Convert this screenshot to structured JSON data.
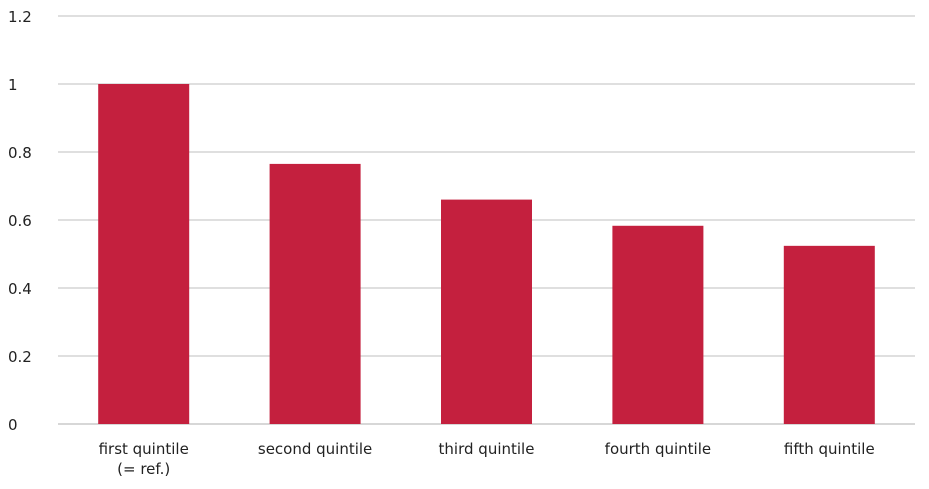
{
  "chart_data": {
    "type": "bar",
    "categories": [
      [
        "first quintile",
        "(= ref.)"
      ],
      [
        "second quintile"
      ],
      [
        "third quintile"
      ],
      [
        "fourth quintile"
      ],
      [
        "fifth quintile"
      ]
    ],
    "values": [
      1.0,
      0.765,
      0.66,
      0.583,
      0.524
    ],
    "ylim": [
      0,
      1.2
    ],
    "yticks": [
      "0",
      "0.2",
      "0.4",
      "0.6",
      "0.8",
      "1",
      "1.2"
    ],
    "title": "",
    "xlabel": "",
    "ylabel": "",
    "grid": true,
    "legend": "none",
    "colors": {
      "bar": "#C4203E",
      "grid": "#BFBFBF",
      "text": "#222222"
    }
  }
}
